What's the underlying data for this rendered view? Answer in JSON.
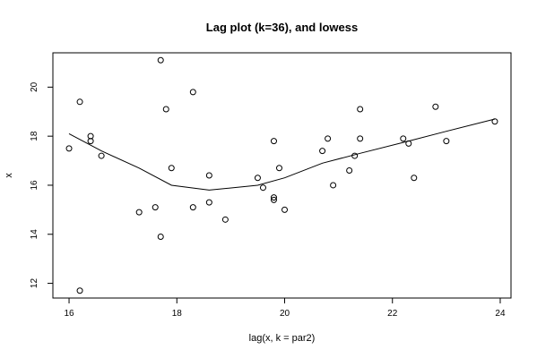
{
  "chart_data": {
    "type": "scatter",
    "title": "Lag plot (k=36), and lowess",
    "xlabel": "lag(x, k = par2)",
    "ylabel": "x",
    "xlim": [
      15.7,
      24.2
    ],
    "ylim": [
      11.4,
      21.4
    ],
    "x_ticks": [
      16,
      18,
      20,
      22,
      24
    ],
    "y_ticks": [
      12,
      14,
      16,
      18,
      20
    ],
    "grid": false,
    "legend": "none",
    "point_color": "#000000",
    "points": [
      {
        "x": 16.0,
        "y": 17.5
      },
      {
        "x": 16.2,
        "y": 19.4
      },
      {
        "x": 16.2,
        "y": 11.7
      },
      {
        "x": 16.4,
        "y": 18.0
      },
      {
        "x": 16.4,
        "y": 17.8
      },
      {
        "x": 16.6,
        "y": 17.2
      },
      {
        "x": 17.3,
        "y": 14.9
      },
      {
        "x": 17.6,
        "y": 15.1
      },
      {
        "x": 17.7,
        "y": 21.1
      },
      {
        "x": 17.7,
        "y": 13.9
      },
      {
        "x": 17.8,
        "y": 19.1
      },
      {
        "x": 17.9,
        "y": 16.7
      },
      {
        "x": 18.3,
        "y": 19.8
      },
      {
        "x": 18.3,
        "y": 15.1
      },
      {
        "x": 18.6,
        "y": 16.4
      },
      {
        "x": 18.6,
        "y": 15.3
      },
      {
        "x": 18.9,
        "y": 14.6
      },
      {
        "x": 19.5,
        "y": 16.3
      },
      {
        "x": 19.6,
        "y": 15.9
      },
      {
        "x": 19.8,
        "y": 17.8
      },
      {
        "x": 19.8,
        "y": 15.5
      },
      {
        "x": 19.8,
        "y": 15.4
      },
      {
        "x": 19.9,
        "y": 16.7
      },
      {
        "x": 20.0,
        "y": 15.0
      },
      {
        "x": 20.7,
        "y": 17.4
      },
      {
        "x": 20.8,
        "y": 17.9
      },
      {
        "x": 20.9,
        "y": 16.0
      },
      {
        "x": 21.2,
        "y": 16.6
      },
      {
        "x": 21.3,
        "y": 17.2
      },
      {
        "x": 21.4,
        "y": 19.1
      },
      {
        "x": 21.4,
        "y": 17.9
      },
      {
        "x": 22.2,
        "y": 17.9
      },
      {
        "x": 22.3,
        "y": 17.7
      },
      {
        "x": 22.4,
        "y": 16.3
      },
      {
        "x": 22.8,
        "y": 19.2
      },
      {
        "x": 23.0,
        "y": 17.8
      },
      {
        "x": 23.9,
        "y": 18.6
      }
    ],
    "lowess": [
      {
        "x": 16.0,
        "y": 18.1
      },
      {
        "x": 16.6,
        "y": 17.4
      },
      {
        "x": 17.3,
        "y": 16.7
      },
      {
        "x": 17.9,
        "y": 16.0
      },
      {
        "x": 18.6,
        "y": 15.8
      },
      {
        "x": 19.5,
        "y": 16.0
      },
      {
        "x": 20.0,
        "y": 16.3
      },
      {
        "x": 20.7,
        "y": 16.9
      },
      {
        "x": 21.4,
        "y": 17.3
      },
      {
        "x": 22.3,
        "y": 17.8
      },
      {
        "x": 23.0,
        "y": 18.2
      },
      {
        "x": 23.9,
        "y": 18.7
      }
    ]
  }
}
